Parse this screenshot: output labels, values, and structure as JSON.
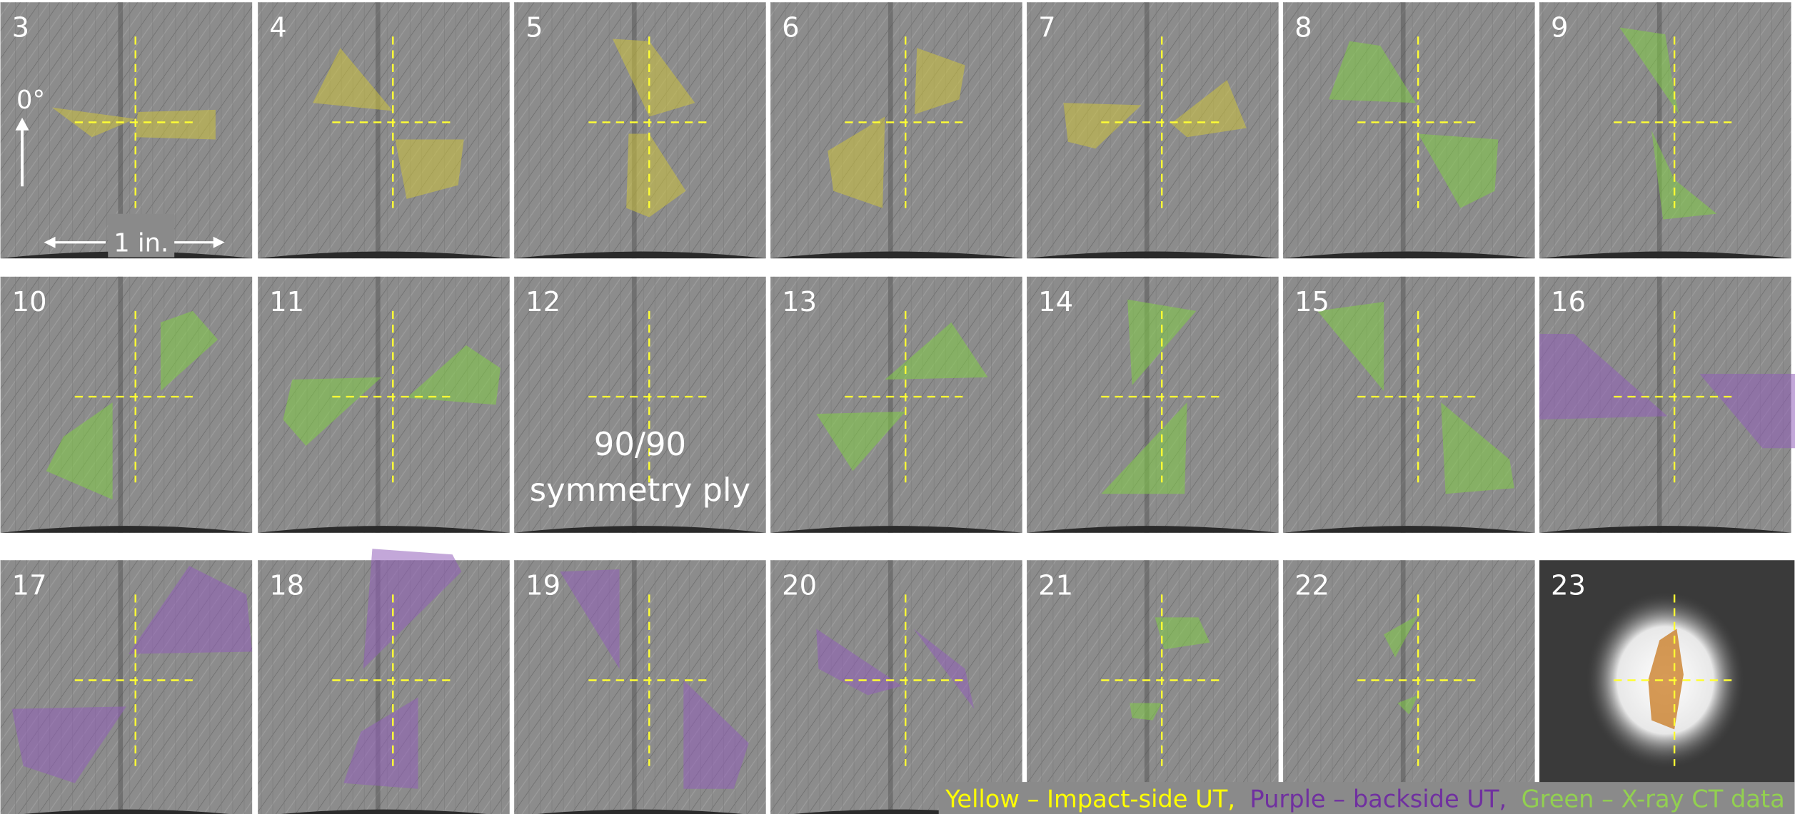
{
  "panels": [
    {
      "label": "3"
    },
    {
      "label": "4"
    },
    {
      "label": "5"
    },
    {
      "label": "6"
    },
    {
      "label": "7"
    },
    {
      "label": "8"
    },
    {
      "label": "9"
    },
    {
      "label": "10"
    },
    {
      "label": "11"
    },
    {
      "label": "12"
    },
    {
      "label": "13"
    },
    {
      "label": "14"
    },
    {
      "label": "15"
    },
    {
      "label": "16"
    },
    {
      "label": "17"
    },
    {
      "label": "18"
    },
    {
      "label": "19"
    },
    {
      "label": "20"
    },
    {
      "label": "21"
    },
    {
      "label": "22"
    },
    {
      "label": "23"
    }
  ],
  "annotations": {
    "angle": "0°",
    "scale": "1 in.",
    "ply_line1": "90/90",
    "ply_line2": "symmetry ply"
  },
  "legend": [
    "Yellow – Impact-side UT,",
    "Purple – backside UT,",
    "Green – X-ray CT data"
  ]
}
